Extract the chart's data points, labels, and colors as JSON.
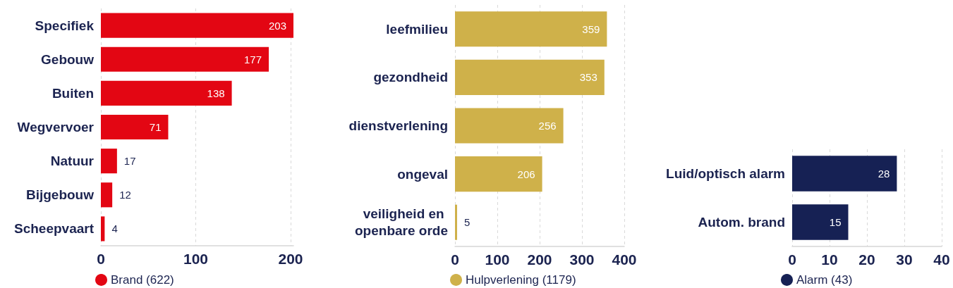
{
  "chart_data": [
    {
      "type": "bar",
      "orientation": "horizontal",
      "categories": [
        "Specifiek",
        "Gebouw",
        "Buiten",
        "Wegvervoer",
        "Natuur",
        "Bijgebouw",
        "Scheepvaart"
      ],
      "series": [
        {
          "name": "Brand (622)",
          "color": "#e30613",
          "values": [
            203,
            177,
            138,
            71,
            17,
            12,
            4
          ]
        }
      ],
      "xlim": [
        0,
        203
      ],
      "xticks": [
        0,
        100,
        200
      ],
      "grid": "x",
      "legend": "bottom",
      "data_labels": true
    },
    {
      "type": "bar",
      "orientation": "horizontal",
      "categories": [
        "leefmilieu",
        "gezondheid",
        "dienstverlening",
        "ongeval",
        "veiligheid en openbare orde"
      ],
      "series": [
        {
          "name": "Hulpverlening (1179)",
          "color": "#cfb14a",
          "values": [
            359,
            353,
            256,
            206,
            5
          ]
        }
      ],
      "xlim": [
        0,
        400
      ],
      "xticks": [
        0,
        100,
        200,
        300,
        400
      ],
      "grid": "x",
      "legend": "bottom",
      "data_labels": true
    },
    {
      "type": "bar",
      "orientation": "horizontal",
      "categories": [
        "Luid/optisch alarm",
        "Autom. brand"
      ],
      "series": [
        {
          "name": "Alarm (43)",
          "color": "#162154",
          "values": [
            28,
            15
          ]
        }
      ],
      "xlim": [
        0,
        40
      ],
      "xticks": [
        0,
        10,
        20,
        30,
        40
      ],
      "grid": "x",
      "legend": "bottom",
      "data_labels": true
    }
  ]
}
